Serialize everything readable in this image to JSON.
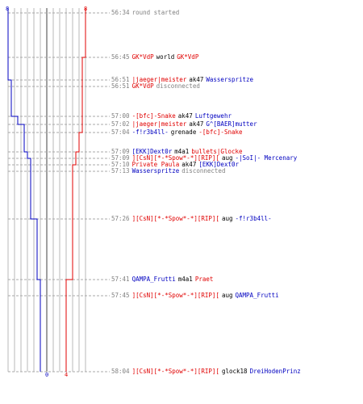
{
  "scoreboard": {
    "blue_top": "8",
    "red_top": "8",
    "blue_bottom": "0",
    "red_bottom": "4",
    "colors": {
      "blue": "#0000c0",
      "red": "#e00000",
      "grid": "#b0b0b0",
      "center": "#808080",
      "dashed": "#b0b0b0"
    }
  },
  "events": [
    {
      "time": "56:34",
      "parts": [
        {
          "text": "round started",
          "color": "gray"
        }
      ]
    },
    {
      "time": "56:45",
      "parts": [
        {
          "text": "GK*VdP",
          "color": "red"
        },
        {
          "text": "world",
          "color": "black"
        },
        {
          "text": "GK*VdP",
          "color": "red"
        }
      ]
    },
    {
      "time": "56:51",
      "parts": [
        {
          "text": "|jaeger|meister",
          "color": "red"
        },
        {
          "text": "ak47",
          "color": "black"
        },
        {
          "text": "Wasserspritze",
          "color": "blue"
        }
      ]
    },
    {
      "time": "56:51",
      "parts": [
        {
          "text": "GK*VdP",
          "color": "red"
        },
        {
          "text": "disconnected",
          "color": "gray"
        }
      ]
    },
    {
      "time": "57:00",
      "parts": [
        {
          "text": "-[bfc]-Snake",
          "color": "red"
        },
        {
          "text": "ak47",
          "color": "black"
        },
        {
          "text": "Luftgewehr",
          "color": "blue"
        }
      ]
    },
    {
      "time": "57:02",
      "parts": [
        {
          "text": "|jaeger|meister",
          "color": "red"
        },
        {
          "text": "ak47",
          "color": "black"
        },
        {
          "text": "G^[BAER]mutter",
          "color": "blue"
        }
      ]
    },
    {
      "time": "57:04",
      "parts": [
        {
          "text": "-f!r3b4ll-",
          "color": "blue"
        },
        {
          "text": "grenade",
          "color": "black"
        },
        {
          "text": "-[bfc]-Snake",
          "color": "red"
        }
      ]
    },
    {
      "time": "57:09",
      "parts": [
        {
          "text": "[EKK]Dext0r",
          "color": "blue"
        },
        {
          "text": "m4a1",
          "color": "black"
        },
        {
          "text": "bullets|Glocke",
          "color": "red"
        }
      ]
    },
    {
      "time": "57:09",
      "parts": [
        {
          "text": "][CsN][*-*Spow*-*][RIP][",
          "color": "red"
        },
        {
          "text": "aug",
          "color": "black"
        },
        {
          "text": "-|SoI|- Mercenary",
          "color": "blue"
        }
      ]
    },
    {
      "time": "57:10",
      "parts": [
        {
          "text": "Private Paula",
          "color": "red"
        },
        {
          "text": "ak47",
          "color": "black"
        },
        {
          "text": "[EKK]Dext0r",
          "color": "blue"
        }
      ]
    },
    {
      "time": "57:13",
      "parts": [
        {
          "text": "Wasserspritze",
          "color": "blue"
        },
        {
          "text": "disconnected",
          "color": "gray"
        }
      ]
    },
    {
      "time": "57:26",
      "parts": [
        {
          "text": "][CsN][*-*Spow*-*][RIP][",
          "color": "red"
        },
        {
          "text": "aug",
          "color": "black"
        },
        {
          "text": "-f!r3b4ll-",
          "color": "blue"
        }
      ]
    },
    {
      "time": "57:41",
      "parts": [
        {
          "text": "QAMPA_Frutti",
          "color": "blue"
        },
        {
          "text": "m4a1",
          "color": "black"
        },
        {
          "text": "Praet",
          "color": "red"
        }
      ]
    },
    {
      "time": "57:45",
      "parts": [
        {
          "text": "][CsN][*-*Spow*-*][RIP][",
          "color": "red"
        },
        {
          "text": "aug",
          "color": "black"
        },
        {
          "text": "QAMPA_Frutti",
          "color": "blue"
        }
      ]
    },
    {
      "time": "58:04",
      "parts": [
        {
          "text": "][CsN][*-*Spow*-*][RIP][",
          "color": "red"
        },
        {
          "text": "glock18",
          "color": "black"
        },
        {
          "text": "DreiHodenPrinz",
          "color": "blue"
        }
      ]
    }
  ]
}
